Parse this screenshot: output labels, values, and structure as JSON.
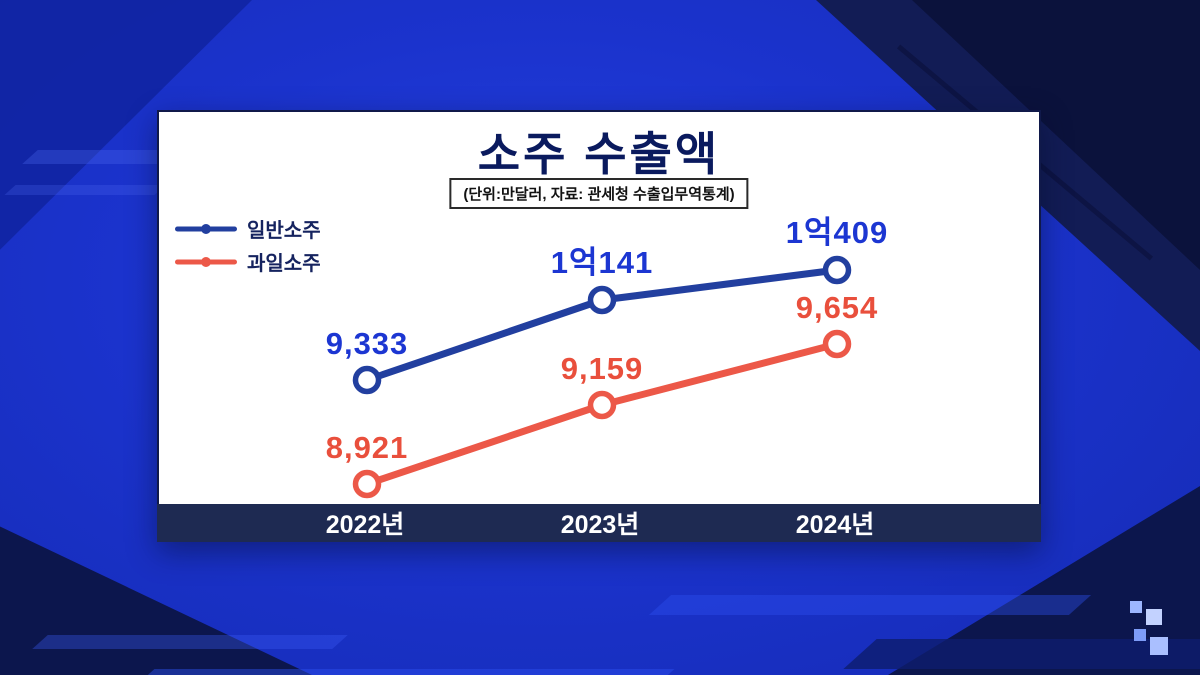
{
  "chart": {
    "title": "소주 수출액",
    "subtitle": "(단위:만달러, 자료: 관세청 수출입무역통계)"
  },
  "chart_data": {
    "type": "line",
    "title": "소주 수출액",
    "unit_note": "(단위:만달러, 자료: 관세청 수출입무역통계)",
    "categories": [
      "2022년",
      "2023년",
      "2024년"
    ],
    "series": [
      {
        "name": "일반소주",
        "line_color": "#223f9f",
        "label_color": "#1c36d2",
        "values": [
          9333,
          10141,
          10409
        ],
        "labels": [
          "9,333",
          "1억141",
          "1억409"
        ]
      },
      {
        "name": "과일소주",
        "line_color": "#ec5848",
        "label_color": "#e94f3c",
        "values": [
          8921,
          9159,
          9654
        ],
        "labels": [
          "8,921",
          "9,159",
          "9,654"
        ]
      }
    ],
    "legend_position": "top-left",
    "grid": false,
    "marker": "open-circle"
  }
}
